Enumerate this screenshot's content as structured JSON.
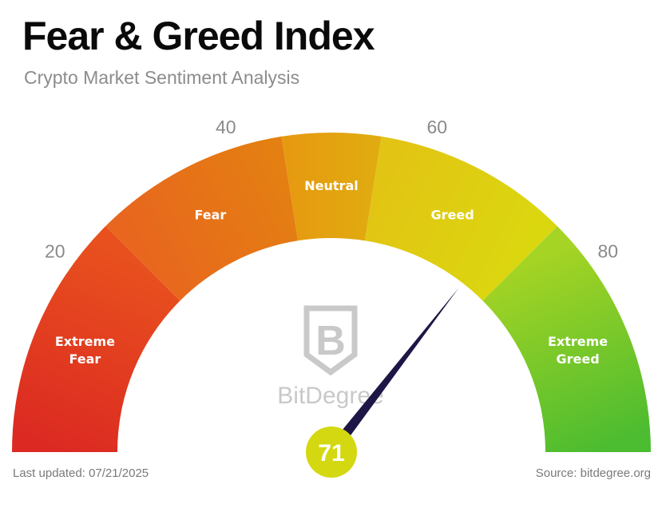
{
  "header": {
    "title": "Fear & Greed Index",
    "subtitle": "Crypto Market Sentiment Analysis"
  },
  "chart_data": {
    "type": "gauge",
    "value": 71,
    "range": [
      0,
      100
    ],
    "ticks": [
      20,
      40,
      60,
      80
    ],
    "zones": [
      {
        "label": "Extreme Fear",
        "from": 0,
        "to": 25,
        "color_start": "#dc2a22",
        "color_end": "#e8501e"
      },
      {
        "label": "Fear",
        "from": 25,
        "to": 45,
        "color_start": "#e8661e",
        "color_end": "#e47f12"
      },
      {
        "label": "Neutral",
        "from": 45,
        "to": 55,
        "color_start": "#e69a10",
        "color_end": "#e0ab10"
      },
      {
        "label": "Greed",
        "from": 55,
        "to": 75,
        "color_start": "#e2c414",
        "color_end": "#dbd70f"
      },
      {
        "label": "Extreme Greed",
        "from": 75,
        "to": 100,
        "color_start": "#a6d424",
        "color_end": "#4cbc30"
      }
    ],
    "needle_color": "#1e1646",
    "value_badge_color": "#d4d810",
    "tick_label_color": "#8a8a8a"
  },
  "watermark": {
    "logo_letter": "B",
    "brand": "BitDegree",
    "color": "#c9c9c9"
  },
  "footer": {
    "updated": "Last updated: 07/21/2025",
    "source": "Source: bitdegree.org"
  }
}
